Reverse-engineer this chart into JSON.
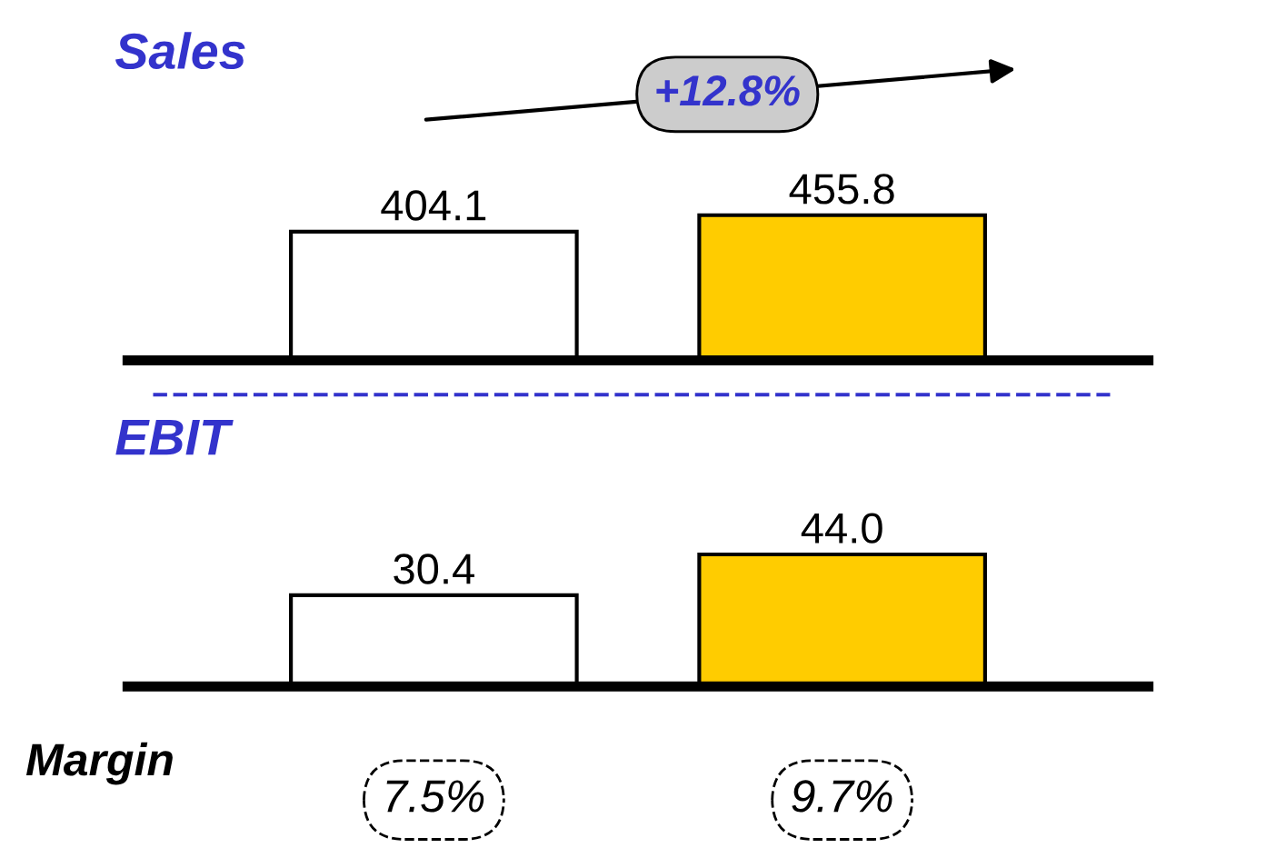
{
  "chart_data": [
    {
      "type": "bar",
      "title": "Sales",
      "categories": [
        null,
        null
      ],
      "values": [
        404.1,
        455.8
      ],
      "colors": [
        "#ffffff",
        "#ffcc00"
      ],
      "data_labels": true,
      "annotations": [
        "+12.8%"
      ]
    },
    {
      "type": "bar",
      "title": "EBIT",
      "categories": [
        null,
        null
      ],
      "values": [
        30.4,
        44.0
      ],
      "value_labels": [
        "30.4",
        "44.0"
      ],
      "colors": [
        "#ffffff",
        "#ffcc00"
      ],
      "annotations": [
        "Margin",
        "7.5%",
        "9.7%"
      ]
    }
  ]
}
